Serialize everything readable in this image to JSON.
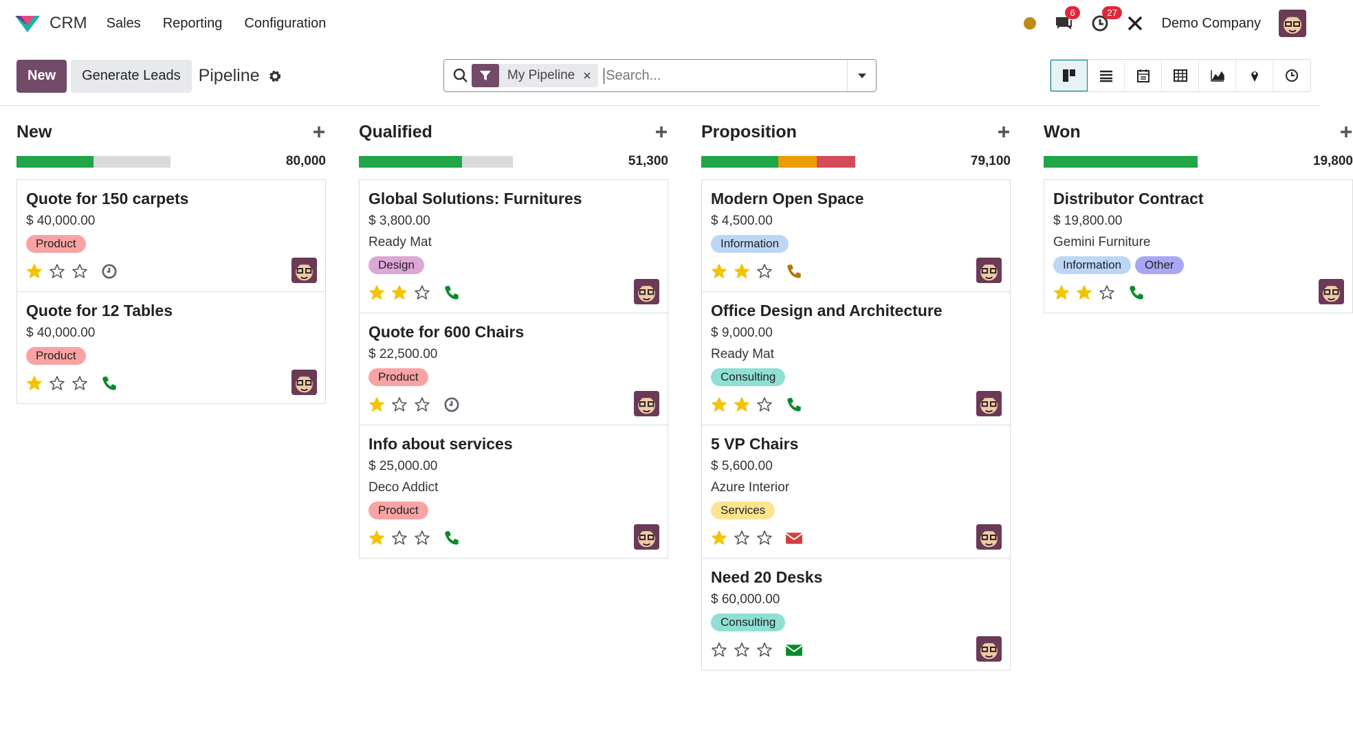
{
  "navbar": {
    "brand": "CRM",
    "menus": [
      "Sales",
      "Reporting",
      "Configuration"
    ],
    "messages_badge": "6",
    "activities_badge": "27",
    "company": "Demo Company"
  },
  "control_panel": {
    "new_button": "New",
    "generate_button": "Generate Leads",
    "title": "Pipeline",
    "facet": "My Pipeline",
    "search_placeholder": "Search..."
  },
  "columns": [
    {
      "name": "New",
      "total": "80,000",
      "progress": [
        {
          "color": "#21a548",
          "value": 50
        }
      ],
      "cards": [
        {
          "title": "Quote for 150 carpets",
          "amount": "$ 40,000.00",
          "tags": [
            {
              "name": "Product",
              "color": "#f8a3a3"
            }
          ],
          "priority": 1,
          "activity": {
            "icon": "clock",
            "color": "#5f636f"
          }
        },
        {
          "title": "Quote for 12 Tables",
          "amount": "$ 40,000.00",
          "tags": [
            {
              "name": "Product",
              "color": "#f8a3a3"
            }
          ],
          "priority": 1,
          "activity": {
            "icon": "phone",
            "color": "#0a8a2a"
          }
        }
      ]
    },
    {
      "name": "Qualified",
      "total": "51,300",
      "progress": [
        {
          "color": "#21a548",
          "value": 67
        }
      ],
      "cards": [
        {
          "title": "Global Solutions: Furnitures",
          "amount": "$ 3,800.00",
          "customer": "Ready Mat",
          "tags": [
            {
              "name": "Design",
              "color": "#dca6d6"
            }
          ],
          "priority": 2,
          "activity": {
            "icon": "phone",
            "color": "#0a8a2a"
          }
        },
        {
          "title": "Quote for 600 Chairs",
          "amount": "$ 22,500.00",
          "tags": [
            {
              "name": "Product",
              "color": "#f8a3a3"
            }
          ],
          "priority": 1,
          "activity": {
            "icon": "clock",
            "color": "#5f636f"
          }
        },
        {
          "title": "Info about services",
          "amount": "$ 25,000.00",
          "customer": "Deco Addict",
          "tags": [
            {
              "name": "Product",
              "color": "#f8a3a3"
            }
          ],
          "priority": 1,
          "activity": {
            "icon": "phone",
            "color": "#0a8a2a"
          }
        }
      ]
    },
    {
      "name": "Proposition",
      "total": "79,100",
      "progress": [
        {
          "color": "#21a548",
          "value": 50
        },
        {
          "color": "#e99d00",
          "value": 25
        },
        {
          "color": "#d44c59",
          "value": 25
        }
      ],
      "cards": [
        {
          "title": "Modern Open Space",
          "amount": "$ 4,500.00",
          "tags": [
            {
              "name": "Information",
              "color": "#bcd6f5"
            }
          ],
          "priority": 2,
          "activity": {
            "icon": "phone",
            "color": "#b5770b"
          }
        },
        {
          "title": "Office Design and Architecture",
          "amount": "$ 9,000.00",
          "customer": "Ready Mat",
          "tags": [
            {
              "name": "Consulting",
              "color": "#8fdfd3"
            }
          ],
          "priority": 2,
          "activity": {
            "icon": "phone",
            "color": "#0a8a2a"
          }
        },
        {
          "title": "5 VP Chairs",
          "amount": "$ 5,600.00",
          "customer": "Azure Interior",
          "tags": [
            {
              "name": "Services",
              "color": "#fbe48f"
            }
          ],
          "priority": 1,
          "activity": {
            "icon": "email",
            "color": "#d23f3f"
          }
        },
        {
          "title": "Need 20 Desks",
          "amount": "$ 60,000.00",
          "tags": [
            {
              "name": "Consulting",
              "color": "#8fdfd3"
            }
          ],
          "priority": 0,
          "activity": {
            "icon": "email",
            "color": "#0a8a2a"
          }
        }
      ]
    },
    {
      "name": "Won",
      "total": "19,800",
      "progress": [
        {
          "color": "#21a548",
          "value": 100
        }
      ],
      "cards": [
        {
          "title": "Distributor Contract",
          "amount": "$ 19,800.00",
          "customer": "Gemini Furniture",
          "tags": [
            {
              "name": "Information",
              "color": "#bcd6f5"
            },
            {
              "name": "Other",
              "color": "#a9a7f3"
            }
          ],
          "priority": 2,
          "activity": {
            "icon": "phone",
            "color": "#0a8a2a"
          }
        }
      ]
    }
  ]
}
